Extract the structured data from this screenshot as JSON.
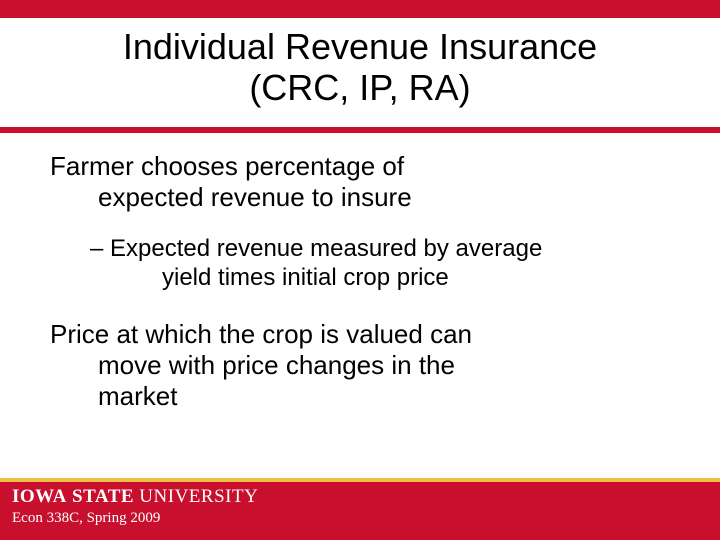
{
  "colors": {
    "red": "#c8102e",
    "gold": "#f1be48",
    "white": "#ffffff",
    "black": "#000000"
  },
  "title": {
    "line1": "Individual Revenue Insurance",
    "line2": "(CRC, IP, RA)"
  },
  "body": {
    "p1_l1": "Farmer chooses percentage of",
    "p1_l2": "expected revenue to insure",
    "sub_l1": "– Expected revenue measured by average",
    "sub_l2": "yield times initial crop price",
    "p2_l1": "Price at which the crop is valued can",
    "p2_l2": "move with price changes in the",
    "p2_l3": "market"
  },
  "footer": {
    "logo_iowa": "IOWA",
    "logo_state": "STATE",
    "logo_univ": "UNIVERSITY",
    "course": "Econ 338C, Spring 2009"
  }
}
